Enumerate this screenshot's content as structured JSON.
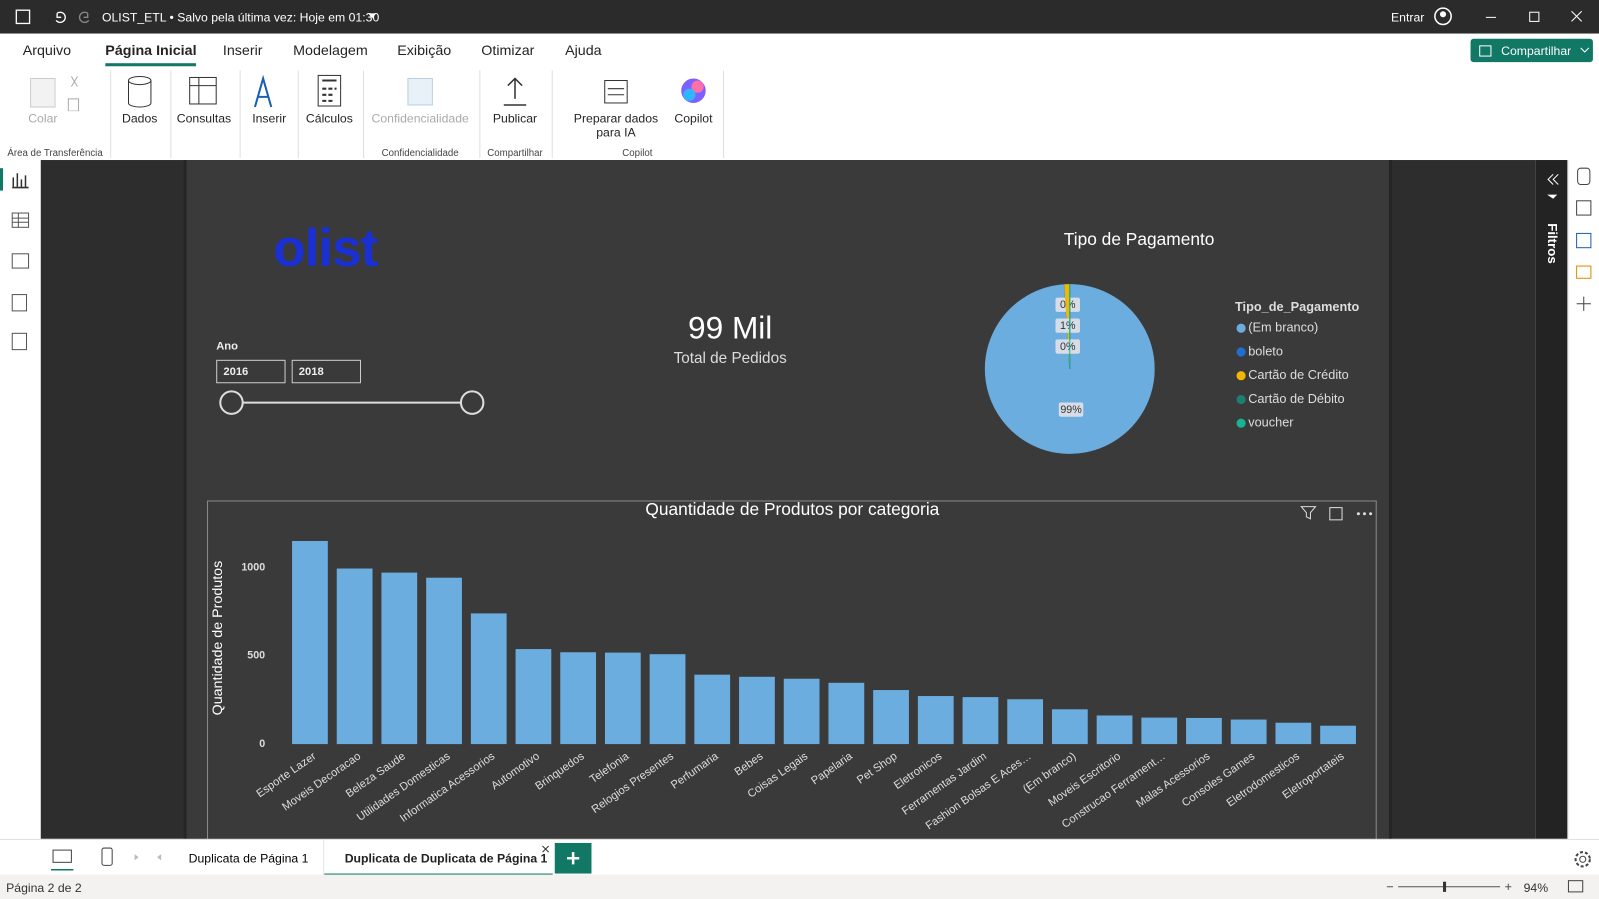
{
  "titlebar": {
    "document": "OLIST_ETL • Salvo pela última vez: Hoje em 01:30",
    "signin": "Entrar"
  },
  "menu": {
    "tabs": [
      "Arquivo",
      "Página Inicial",
      "Inserir",
      "Modelagem",
      "Exibição",
      "Otimizar",
      "Ajuda"
    ],
    "share": "Compartilhar"
  },
  "ribbon": {
    "buttons": [
      "Colar",
      "Dados",
      "Consultas",
      "Inserir",
      "Cálculos",
      "Confidencialidade",
      "Publicar",
      "Preparar dados para IA",
      "Copilot"
    ],
    "groups": [
      "Área de Transferência",
      "Confidencialidade",
      "Compartilhar",
      "Copilot"
    ]
  },
  "filters_pane": "Filtros",
  "report": {
    "logo": "olist",
    "slicer": {
      "label": "Ano",
      "start": "2016",
      "end": "2018"
    },
    "card": {
      "value": "99 Mil",
      "label": "Total de Pedidos"
    }
  },
  "chart_data": [
    {
      "type": "pie",
      "title": "Tipo de Pagamento",
      "legend_title": "Tipo_de_Pagamento",
      "categories": [
        "(Em branco)",
        "boleto",
        "Cartão de Crédito",
        "Cartão de Débito",
        "voucher"
      ],
      "values": [
        99,
        0,
        1,
        0,
        0
      ],
      "value_labels": [
        "99%",
        "0%",
        "1%",
        "0%",
        null
      ],
      "colors": [
        "#6cade0",
        "#1f6fd1",
        "#f2b705",
        "#1d7f6e",
        "#19b394"
      ],
      "legend": "right"
    },
    {
      "type": "bar",
      "title": "Quantidade de Produtos por categoria",
      "ylabel": "Quantidade de Produtos",
      "categories": [
        "Esporte Lazer",
        "Moveis Decoracao",
        "Beleza Saude",
        "Utilidades Domesticas",
        "Informatica Acessorios",
        "Automotivo",
        "Brinquedos",
        "Telefonia",
        "Relogios Presentes",
        "Perfumaria",
        "Bebes",
        "Coisas Legais",
        "Papelaria",
        "Pet Shop",
        "Eletronicos",
        "Ferramentas Jardim",
        "Fashion Bolsas E Aces…",
        "(Em branco)",
        "Moveis Escritorio",
        "Construcao Ferrament…",
        "Malas Acessorios",
        "Consoles Games",
        "Eletrodomesticos",
        "Eletroportateis"
      ],
      "values": [
        1150,
        994,
        971,
        942,
        740,
        538,
        520,
        518,
        509,
        393,
        381,
        370,
        347,
        306,
        272,
        266,
        254,
        197,
        162,
        150,
        148,
        139,
        121,
        104
      ],
      "color": "#6cade0",
      "ylim": [
        0,
        1160
      ],
      "yticks": [
        0,
        500,
        1000
      ],
      "grid": false
    }
  ],
  "page_tabs": [
    "Duplicata de Página 1",
    "Duplicata de Duplicata de Página 1"
  ],
  "status": {
    "page": "Página 2 de 2",
    "zoom": "94%"
  }
}
